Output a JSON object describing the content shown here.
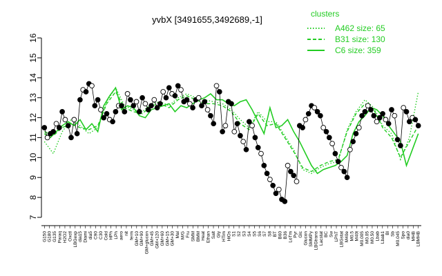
{
  "chart_data": {
    "type": "line",
    "title": "yvbX [3491655,3492689,-1]",
    "xlabel": "",
    "ylabel": "",
    "ylim": [
      7,
      16
    ],
    "yticks": [
      7,
      8,
      9,
      10,
      11,
      12,
      13,
      14,
      15,
      16
    ],
    "grid": false,
    "legend_placement": "top-right",
    "legend": {
      "title": "clusters",
      "entries": [
        {
          "label": "A462 size: 65",
          "style": "dotted",
          "color": "#22cc22"
        },
        {
          "label": "B31 size: 130",
          "style": "dashed",
          "color": "#22cc22"
        },
        {
          "label": "C6 size: 359",
          "style": "solid",
          "color": "#22cc22"
        }
      ]
    },
    "categories": [
      "G150",
      "G180",
      "G135",
      "Paraq",
      "H2O2",
      "Oxctl",
      "LBGexp",
      "dia15",
      "Diami",
      "dia5",
      "C90",
      "C30",
      "Cold",
      "HPh",
      "LPh",
      "aero",
      "nit",
      "ferm",
      "GM+10",
      "GM+90",
      "GM+glucon",
      "GM+45",
      "GM+120",
      "GM+60",
      "GM+15",
      "GM+30",
      "Mal",
      "M/G",
      "Fru",
      "SMM",
      "BMM",
      "Heat",
      "Ethan",
      "Salt",
      "Gly",
      "HTim",
      "HiOs",
      "S1",
      "S2",
      "S3",
      "S4",
      "S5",
      "S6",
      "S7",
      "S8",
      "BT",
      "B60",
      "B36",
      "LoTm",
      "Pyr",
      "Glc",
      "Glucon",
      "SMMPy",
      "LBGtrans",
      "Lacstat",
      "BC",
      "Sw",
      "LPhT",
      "LBGstat",
      "M40e",
      "M0.5",
      "M40t",
      "M0.005",
      "M0.05",
      "M0.50",
      "Lbab",
      "Lbab1",
      "Bl",
      "Sb",
      "M0.045",
      "Spo",
      "dia0",
      "MHB",
      "LBMHB"
    ],
    "series": [
      {
        "name": "C6 size: 359",
        "style": "solid",
        "color": "#22cc22",
        "x": [
          1,
          3,
          5,
          7,
          9,
          11,
          13,
          15,
          17,
          19,
          21,
          23,
          25,
          27,
          29,
          31,
          33,
          35,
          37,
          39,
          41,
          43,
          45,
          47,
          49,
          51,
          53,
          55,
          57,
          59,
          61,
          63,
          65,
          67,
          69,
          71,
          73,
          75,
          77,
          79,
          81,
          83,
          85,
          87,
          89,
          91,
          93,
          95,
          97,
          99,
          101,
          103,
          105,
          107,
          109,
          111,
          113,
          115,
          117,
          119,
          121,
          123,
          125,
          127
        ],
        "y": [
          11.2,
          11.0,
          11.3,
          11.6,
          11.8,
          11.6,
          11.9,
          11.4,
          11.7,
          11.3,
          12.6,
          13.1,
          13.5,
          12.4,
          12.6,
          12.5,
          12.1,
          12.0,
          12.4,
          12.5,
          12.6,
          12.7,
          12.3,
          12.6,
          12.5,
          12.7,
          12.9,
          13.0,
          13.2,
          12.9,
          12.9,
          12.7,
          12.6,
          12.8,
          12.9,
          12.4,
          11.8,
          11.2,
          12.5,
          11.5,
          11.6,
          11.9,
          11.3,
          10.8,
          10.2,
          9.6,
          9.2,
          9.4,
          9.5,
          9.6,
          9.8,
          10.1,
          11.2,
          11.8,
          12.1,
          12.5,
          12.4,
          12.1,
          11.6,
          11.2,
          10.8,
          9.6,
          10.4,
          11.2
        ]
      },
      {
        "name": "B31 size: 130",
        "style": "dashed",
        "color": "#22cc22",
        "x": [
          1,
          4,
          7,
          10,
          13,
          16,
          19,
          22,
          25,
          28,
          31,
          34,
          37,
          40,
          43,
          46,
          49,
          52,
          55,
          58,
          61,
          64,
          67,
          70,
          73,
          76,
          79,
          82,
          85,
          88,
          91,
          94,
          97,
          100,
          103,
          106,
          109,
          112,
          115,
          118,
          121,
          124,
          127
        ],
        "y": [
          11.3,
          11.1,
          11.5,
          11.7,
          11.5,
          11.4,
          11.6,
          12.7,
          13.3,
          12.5,
          12.3,
          12.2,
          12.6,
          12.7,
          12.5,
          12.9,
          13.1,
          12.9,
          12.7,
          12.7,
          12.6,
          12.3,
          11.7,
          11.4,
          12.2,
          11.6,
          11.7,
          11.0,
          10.3,
          9.5,
          9.3,
          9.6,
          9.8,
          9.9,
          11.3,
          12.2,
          12.7,
          12.4,
          11.5,
          11.0,
          10.0,
          10.8,
          11.6
        ]
      },
      {
        "name": "A462 size: 65",
        "style": "dotted",
        "color": "#22cc22",
        "x": [
          1,
          4,
          7,
          10,
          13,
          16,
          19,
          22,
          25,
          28,
          31,
          34,
          37,
          40,
          43,
          46,
          49,
          52,
          55,
          58,
          61,
          64,
          67,
          70,
          73,
          76,
          79,
          82,
          85,
          88,
          91,
          94,
          97,
          100,
          103,
          106,
          109,
          112,
          115,
          118,
          121,
          124,
          127
        ],
        "y": [
          10.8,
          10.2,
          11.3,
          11.9,
          11.6,
          11.2,
          11.5,
          12.8,
          13.5,
          12.6,
          12.4,
          12.3,
          12.7,
          12.8,
          12.6,
          13.0,
          13.2,
          13.0,
          12.9,
          12.8,
          12.7,
          12.4,
          11.9,
          11.5,
          12.3,
          11.8,
          11.8,
          11.1,
          10.4,
          9.4,
          9.2,
          9.5,
          9.7,
          9.8,
          11.4,
          12.3,
          12.9,
          12.5,
          11.6,
          11.2,
          9.9,
          11.0,
          13.3
        ]
      },
      {
        "name": "",
        "style": "points",
        "color": "#000000",
        "x": [
          1,
          2,
          3,
          4,
          5,
          6,
          7,
          8,
          9,
          10,
          11,
          12,
          13,
          14,
          15,
          16,
          17,
          18,
          19,
          20,
          21,
          22,
          23,
          24,
          25,
          26,
          27,
          28,
          29,
          30,
          31,
          32,
          33,
          34,
          35,
          36,
          37,
          38,
          39,
          40,
          41,
          42,
          43,
          44,
          45,
          46,
          47,
          48,
          49,
          50,
          51,
          52,
          53,
          54,
          55,
          56,
          57,
          58,
          59,
          60,
          61,
          62,
          63,
          64,
          65,
          66,
          67,
          68,
          69,
          70,
          71,
          72,
          73,
          74,
          75,
          76,
          77,
          78,
          79,
          80,
          81,
          82,
          83,
          84,
          85,
          86,
          87,
          88,
          89,
          90,
          91,
          92,
          93,
          94,
          95,
          96,
          97,
          98,
          99,
          100,
          101,
          102,
          103,
          104,
          105,
          106,
          107,
          108,
          109,
          110,
          111,
          112,
          113,
          114,
          115,
          116,
          117,
          118,
          119,
          120,
          121,
          122,
          123,
          124,
          125,
          126,
          127
        ],
        "y": [
          11.5,
          11.0,
          11.2,
          11.3,
          11.7,
          11.5,
          12.3,
          11.9,
          11.6,
          11.0,
          11.9,
          11.2,
          12.9,
          13.4,
          13.3,
          13.7,
          13.6,
          12.6,
          12.9,
          12.4,
          12.0,
          12.2,
          11.9,
          11.8,
          12.3,
          12.6,
          12.6,
          12.3,
          13.2,
          12.9,
          12.6,
          12.8,
          12.3,
          13.0,
          12.7,
          12.4,
          12.6,
          12.9,
          12.5,
          12.7,
          13.3,
          13.0,
          13.5,
          13.2,
          13.1,
          13.6,
          13.4,
          12.8,
          12.9,
          12.7,
          12.5,
          12.9,
          13.0,
          12.6,
          12.8,
          12.4,
          12.1,
          11.7,
          13.6,
          13.3,
          11.3,
          11.6,
          12.8,
          12.7,
          11.3,
          11.7,
          11.1,
          10.8,
          10.4,
          11.8,
          11.6,
          11.0,
          10.5,
          10.2,
          9.6,
          9.2,
          8.9,
          8.6,
          8.2,
          8.4,
          7.9,
          7.8,
          9.6,
          9.3,
          9.1,
          8.8,
          11.6,
          11.5,
          11.9,
          12.2,
          12.6,
          12.5,
          12.3,
          12.1,
          11.5,
          11.3,
          11.0,
          10.7,
          10.2,
          9.8,
          9.5,
          9.3,
          9.0,
          10.4,
          10.8,
          11.2,
          11.5,
          12.1,
          12.3,
          12.6,
          12.4,
          12.1,
          11.8,
          12.0,
          12.2,
          11.9,
          11.7,
          12.4,
          12.1,
          10.9,
          10.6,
          12.5,
          12.3,
          11.8,
          12.0,
          11.9,
          11.6
        ]
      }
    ]
  }
}
